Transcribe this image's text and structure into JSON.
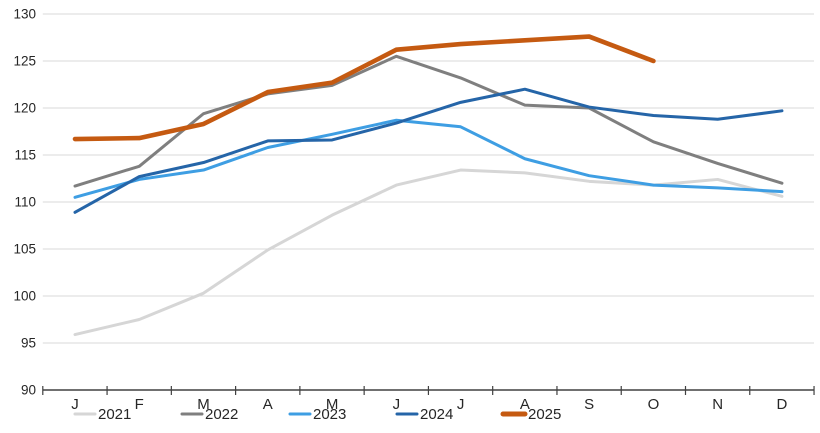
{
  "chart_data": {
    "type": "line",
    "title": "",
    "xlabel": "",
    "ylabel": "",
    "categories": [
      "J",
      "F",
      "M",
      "A",
      "M",
      "J",
      "J",
      "A",
      "S",
      "O",
      "N",
      "D"
    ],
    "y_ticks": [
      90,
      95,
      100,
      105,
      110,
      115,
      120,
      125,
      130
    ],
    "ylim": [
      90,
      130
    ],
    "grid": "horizontal-only",
    "gridline_color": "#d9d9d9",
    "axis_color": "#404040",
    "label_color": "#262626",
    "legend_position": "bottom",
    "series": [
      {
        "name": "2021",
        "color": "#d6d6d6",
        "stroke_width": 3,
        "values": [
          95.9,
          97.5,
          100.3,
          104.9,
          108.6,
          111.8,
          113.4,
          113.1,
          112.2,
          111.8,
          112.4,
          110.6
        ]
      },
      {
        "name": "2022",
        "color": "#7f7f7f",
        "stroke_width": 3,
        "values": [
          111.7,
          113.8,
          119.4,
          121.5,
          122.4,
          125.5,
          123.2,
          120.3,
          120.0,
          116.4,
          114.1,
          112.0
        ]
      },
      {
        "name": "2023",
        "color": "#3e9ee3",
        "stroke_width": 3,
        "values": [
          110.5,
          112.4,
          113.4,
          115.8,
          117.2,
          118.7,
          118.0,
          114.6,
          112.8,
          111.8,
          111.5,
          111.1
        ]
      },
      {
        "name": "2024",
        "color": "#2565a8",
        "stroke_width": 3,
        "values": [
          108.9,
          112.7,
          114.2,
          116.5,
          116.6,
          118.4,
          120.6,
          122.0,
          120.1,
          119.2,
          118.8,
          119.7
        ]
      },
      {
        "name": "2025",
        "color": "#c55a11",
        "stroke_width": 4.6,
        "values": [
          116.7,
          116.8,
          118.3,
          121.7,
          122.7,
          126.2,
          126.8,
          127.2,
          127.6,
          125.0
        ]
      }
    ]
  }
}
